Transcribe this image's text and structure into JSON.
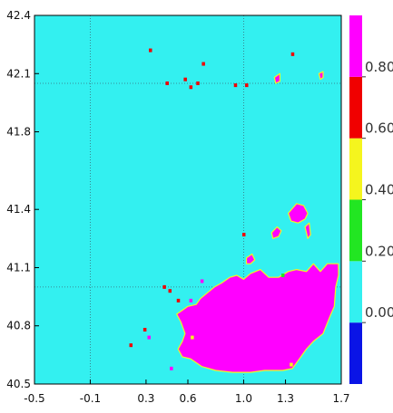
{
  "chart_data": {
    "type": "heatmap",
    "xlim": [
      -0.5,
      1.7
    ],
    "ylim": [
      40.5,
      42.4
    ],
    "x_ticks": [
      "-0.5",
      "-0.1",
      "0.3",
      "0.6",
      "1.0",
      "1.3",
      "1.7"
    ],
    "x_tick_values": [
      -0.5,
      -0.1,
      0.3,
      0.6,
      1.0,
      1.3,
      1.7
    ],
    "y_ticks": [
      "40.5",
      "40.8",
      "41.1",
      "41.4",
      "41.8",
      "42.1",
      "42.4"
    ],
    "y_tick_values": [
      40.5,
      40.8,
      41.1,
      41.4,
      41.8,
      42.1,
      42.4
    ],
    "background_value_class": "0.00-0.20",
    "colorbar": {
      "bins": [
        {
          "from": -0.2,
          "to": 0.0,
          "color": "#0a14e6"
        },
        {
          "from": 0.0,
          "to": 0.2,
          "color": "#33f0f0"
        },
        {
          "from": 0.2,
          "to": 0.4,
          "color": "#22e622"
        },
        {
          "from": 0.4,
          "to": 0.6,
          "color": "#f5f51e"
        },
        {
          "from": 0.6,
          "to": 0.8,
          "color": "#f00000"
        },
        {
          "from": 0.8,
          "to": 1.0,
          "color": "#ff00ff"
        }
      ],
      "labels": [
        "0.00",
        "0.20",
        "0.40",
        "0.60",
        "0.80"
      ],
      "label_values": [
        0.0,
        0.2,
        0.4,
        0.6,
        0.8
      ]
    },
    "grid_lines": {
      "vertical_x": [
        -0.1,
        1.0
      ],
      "horizontal_y": [
        41.0,
        42.05
      ]
    },
    "regions": [
      {
        "name": "main-high-value-region",
        "value_class": "0.80-1.00",
        "polygon": [
          [
            0.52,
            40.86
          ],
          [
            0.55,
            40.82
          ],
          [
            0.58,
            40.76
          ],
          [
            0.56,
            40.72
          ],
          [
            0.53,
            40.68
          ],
          [
            0.56,
            40.64
          ],
          [
            0.62,
            40.63
          ],
          [
            0.7,
            40.59
          ],
          [
            0.8,
            40.57
          ],
          [
            0.92,
            40.56
          ],
          [
            1.05,
            40.56
          ],
          [
            1.15,
            40.57
          ],
          [
            1.28,
            40.57
          ],
          [
            1.35,
            40.58
          ],
          [
            1.4,
            40.63
          ],
          [
            1.45,
            40.68
          ],
          [
            1.5,
            40.72
          ],
          [
            1.57,
            40.76
          ],
          [
            1.62,
            40.85
          ],
          [
            1.65,
            40.9
          ],
          [
            1.66,
            41.0
          ],
          [
            1.68,
            41.06
          ],
          [
            1.68,
            41.12
          ],
          [
            1.6,
            41.12
          ],
          [
            1.55,
            41.08
          ],
          [
            1.5,
            41.12
          ],
          [
            1.45,
            41.08
          ],
          [
            1.38,
            41.09
          ],
          [
            1.32,
            41.08
          ],
          [
            1.25,
            41.05
          ],
          [
            1.18,
            41.05
          ],
          [
            1.12,
            41.09
          ],
          [
            1.05,
            41.07
          ],
          [
            1.0,
            41.04
          ],
          [
            0.95,
            41.06
          ],
          [
            0.9,
            41.05
          ],
          [
            0.84,
            41.02
          ],
          [
            0.79,
            41.0
          ],
          [
            0.74,
            40.97
          ],
          [
            0.69,
            40.94
          ],
          [
            0.66,
            40.91
          ],
          [
            0.6,
            40.9
          ]
        ]
      },
      {
        "name": "upper-right-blob",
        "value_class": "0.80-1.00",
        "polygon": [
          [
            1.32,
            41.38
          ],
          [
            1.38,
            41.43
          ],
          [
            1.43,
            41.42
          ],
          [
            1.46,
            41.38
          ],
          [
            1.44,
            41.35
          ],
          [
            1.39,
            41.33
          ],
          [
            1.34,
            41.34
          ]
        ]
      },
      {
        "name": "upper-right-blob-b",
        "value_class": "0.80-1.00",
        "polygon": [
          [
            1.2,
            41.28
          ],
          [
            1.24,
            41.31
          ],
          [
            1.27,
            41.29
          ],
          [
            1.25,
            41.26
          ],
          [
            1.21,
            41.25
          ]
        ]
      },
      {
        "name": "upper-right-blob-c",
        "value_class": "0.80-1.00",
        "polygon": [
          [
            1.44,
            41.31
          ],
          [
            1.47,
            41.33
          ],
          [
            1.48,
            41.27
          ],
          [
            1.46,
            41.25
          ]
        ]
      },
      {
        "name": "mid-blob",
        "value_class": "0.80-1.00",
        "polygon": [
          [
            1.02,
            41.15
          ],
          [
            1.06,
            41.17
          ],
          [
            1.08,
            41.14
          ],
          [
            1.05,
            41.12
          ],
          [
            1.02,
            41.12
          ]
        ]
      },
      {
        "name": "small-blob-near-42-1",
        "value_class": "0.80-1.00",
        "polygon": [
          [
            1.22,
            42.08
          ],
          [
            1.26,
            42.1
          ],
          [
            1.26,
            42.06
          ],
          [
            1.23,
            42.05
          ]
        ]
      },
      {
        "name": "small-blob-far-right",
        "value_class": "0.80-1.00",
        "polygon": [
          [
            1.54,
            42.1
          ],
          [
            1.57,
            42.11
          ],
          [
            1.57,
            42.08
          ],
          [
            1.55,
            42.07
          ]
        ]
      }
    ],
    "specks": [
      {
        "x": 0.33,
        "y": 42.22,
        "value_class": "0.60-0.80"
      },
      {
        "x": 0.45,
        "y": 42.05,
        "value_class": "0.60-0.80"
      },
      {
        "x": 0.58,
        "y": 42.07,
        "value_class": "0.60-0.80"
      },
      {
        "x": 0.62,
        "y": 42.03,
        "value_class": "0.60-0.80"
      },
      {
        "x": 0.67,
        "y": 42.05,
        "value_class": "0.60-0.80"
      },
      {
        "x": 0.71,
        "y": 42.15,
        "value_class": "0.60-0.80"
      },
      {
        "x": 0.94,
        "y": 42.04,
        "value_class": "0.60-0.80"
      },
      {
        "x": 1.02,
        "y": 42.04,
        "value_class": "0.60-0.80"
      },
      {
        "x": 1.35,
        "y": 42.2,
        "value_class": "0.60-0.80"
      },
      {
        "x": 1.0,
        "y": 41.27,
        "value_class": "0.60-0.80"
      },
      {
        "x": 0.47,
        "y": 40.98,
        "value_class": "0.60-0.80"
      },
      {
        "x": 0.53,
        "y": 40.93,
        "value_class": "0.60-0.80"
      },
      {
        "x": 0.29,
        "y": 40.78,
        "value_class": "0.60-0.80"
      },
      {
        "x": 0.19,
        "y": 40.7,
        "value_class": "0.60-0.80"
      },
      {
        "x": 0.32,
        "y": 40.74,
        "value_class": "0.80-1.00"
      },
      {
        "x": 0.48,
        "y": 40.58,
        "value_class": "0.80-1.00"
      },
      {
        "x": 0.62,
        "y": 40.93,
        "value_class": "0.80-1.00"
      },
      {
        "x": 0.43,
        "y": 41.0,
        "value_class": "0.60-0.80"
      },
      {
        "x": 0.7,
        "y": 41.03,
        "value_class": "0.80-1.00"
      },
      {
        "x": 1.34,
        "y": 40.6,
        "value_class": "0.40-0.60"
      },
      {
        "x": 1.28,
        "y": 41.06,
        "value_class": "0.20-0.40"
      },
      {
        "x": 0.63,
        "y": 40.74,
        "value_class": "0.40-0.60"
      }
    ]
  }
}
